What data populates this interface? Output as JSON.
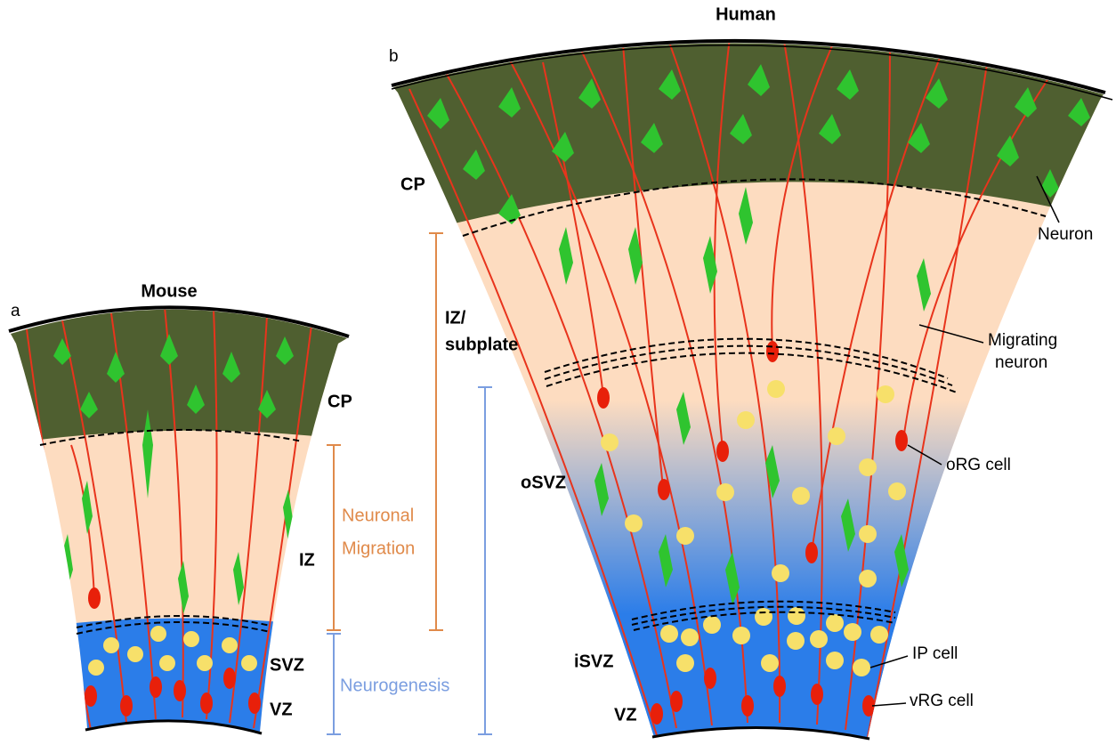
{
  "panel_a": {
    "label": "a",
    "title": "Mouse",
    "zones": {
      "cp": "CP",
      "iz": "IZ",
      "svz": "SVZ",
      "vz": "VZ"
    },
    "brackets": {
      "migration": [
        "Neuronal",
        "Migration"
      ],
      "neurogenesis": "Neurogenesis"
    }
  },
  "panel_b": {
    "label": "b",
    "title": "Human",
    "zones": {
      "cp": "CP",
      "iz_subplate": [
        "IZ/",
        "subplate"
      ],
      "osvz": "oSVZ",
      "isvz": "iSVZ",
      "vz": "VZ"
    },
    "callouts": {
      "neuron": "Neuron",
      "migrating_neuron": [
        "Migrating",
        "neuron"
      ],
      "org_cell": "oRG cell",
      "ip_cell": "IP cell",
      "vrg_cell": "vRG cell"
    }
  }
}
